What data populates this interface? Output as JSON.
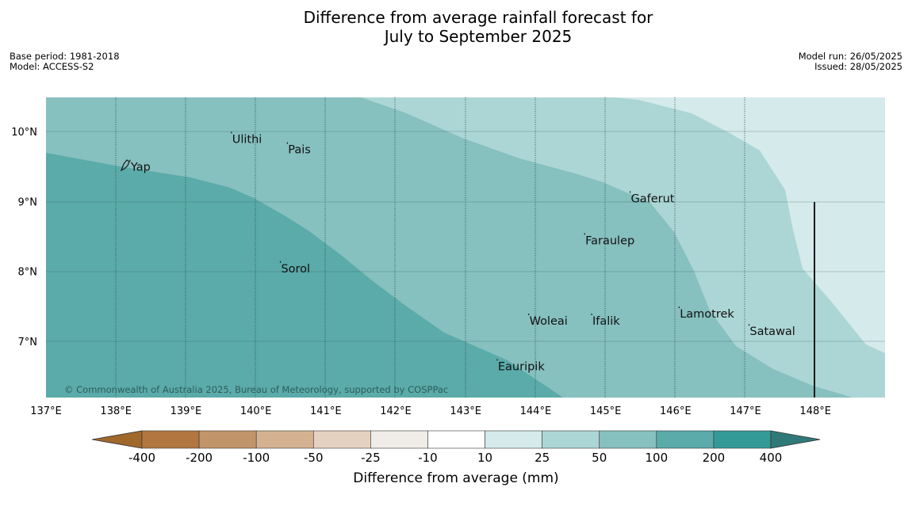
{
  "title": {
    "line1": "Difference from average rainfall forecast for",
    "line2": "July to September 2025"
  },
  "meta": {
    "base_period": "Base period: 1981-2018",
    "model": "Model: ACCESS-S2",
    "model_run": "Model run: 26/05/2025",
    "issued": "Issued: 28/05/2025"
  },
  "copyright": "© Commonwealth of Australia 2025, Bureau of Meteorology, supported by COSPPac",
  "axes": {
    "lon_labels": [
      "137°E",
      "138°E",
      "139°E",
      "140°E",
      "141°E",
      "142°E",
      "143°E",
      "144°E",
      "145°E",
      "146°E",
      "147°E",
      "148°E"
    ],
    "lon_values": [
      137,
      138,
      139,
      140,
      141,
      142,
      143,
      144,
      145,
      146,
      147,
      148
    ],
    "lat_labels": [
      "10°N",
      "9°N",
      "8°N",
      "7°N"
    ],
    "lat_values": [
      10,
      9,
      8,
      7
    ],
    "lon_range": [
      137,
      149
    ],
    "lat_range": [
      6.2,
      10.5
    ]
  },
  "places": [
    {
      "name": "Yap",
      "lon": 138.2,
      "lat": 9.55
    },
    {
      "name": "Ulithi",
      "lon": 139.65,
      "lat": 9.95
    },
    {
      "name": "Pais",
      "lon": 140.45,
      "lat": 9.8
    },
    {
      "name": "Gaferut",
      "lon": 145.35,
      "lat": 9.1
    },
    {
      "name": "Faraulep",
      "lon": 144.7,
      "lat": 8.5
    },
    {
      "name": "Sorol",
      "lon": 140.35,
      "lat": 8.1
    },
    {
      "name": "Woleai",
      "lon": 143.9,
      "lat": 7.35
    },
    {
      "name": "Ifalik",
      "lon": 144.8,
      "lat": 7.35
    },
    {
      "name": "Lamotrek",
      "lon": 146.05,
      "lat": 7.45
    },
    {
      "name": "Satawal",
      "lon": 147.05,
      "lat": 7.2
    },
    {
      "name": "Eauripik",
      "lon": 143.45,
      "lat": 6.7
    }
  ],
  "legend": {
    "title": "Difference from average (mm)",
    "tick_labels": [
      "-400",
      "-200",
      "-100",
      "-50",
      "-25",
      "-10",
      "10",
      "25",
      "50",
      "100",
      "200",
      "400"
    ],
    "colors": [
      "#a0682a",
      "#b27640",
      "#c29469",
      "#d4b291",
      "#e5d1c0",
      "#f0ede8",
      "#ffffff",
      "#d5eaea",
      "#acd6d5",
      "#86c0bf",
      "#5aabaa",
      "#349a98",
      "#2f7a78"
    ]
  },
  "zones": {
    "colors": [
      "#5aabaa",
      "#86c0bf",
      "#acd6d5",
      "#d5eaea"
    ]
  }
}
